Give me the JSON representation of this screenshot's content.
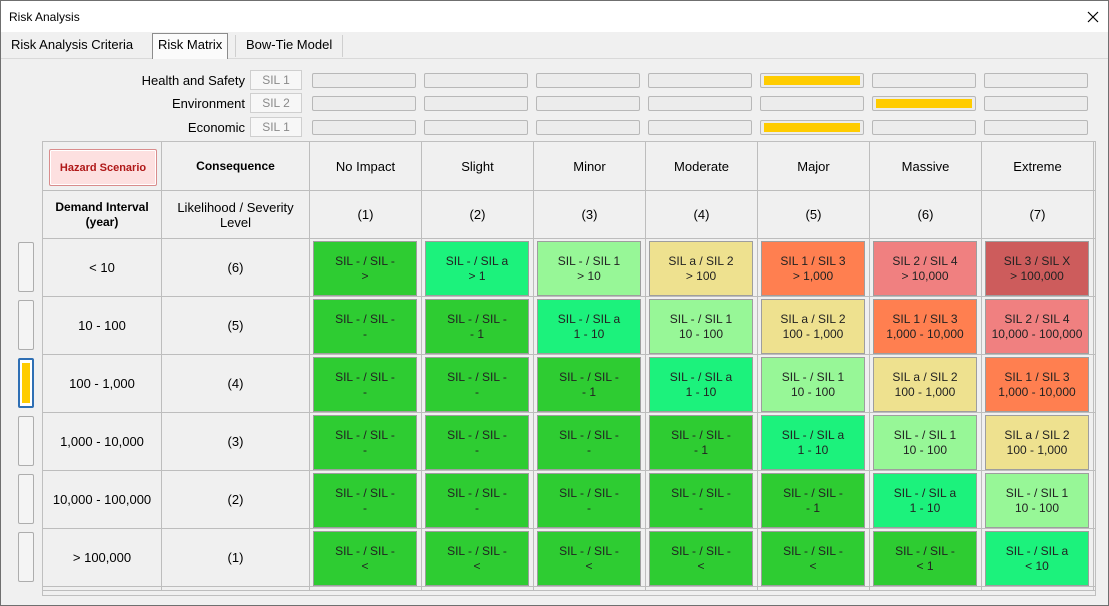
{
  "window": {
    "title": "Risk Analysis"
  },
  "tabs": [
    {
      "label": "Risk Analysis Criteria",
      "active": false
    },
    {
      "label": "Risk Matrix",
      "active": true
    },
    {
      "label": "Bow-Tie Model",
      "active": false
    }
  ],
  "criteria": [
    {
      "label": "Health and Safety",
      "sil": "SIL 1",
      "active_index": 4
    },
    {
      "label": "Environment",
      "sil": "SIL 2",
      "active_index": 5
    },
    {
      "label": "Economic",
      "sil": "SIL 1",
      "active_index": 4
    }
  ],
  "indicator_color": "#ffcc00",
  "matrix": {
    "hazard_button": "Hazard Scenario",
    "consequence_header": "Consequence",
    "demand_header": "Demand Interval (year)",
    "likelihood_header": "Likelihood / Severity Level",
    "columns": [
      {
        "name": "No Impact",
        "level": "(1)"
      },
      {
        "name": "Slight",
        "level": "(2)"
      },
      {
        "name": "Minor",
        "level": "(3)"
      },
      {
        "name": "Moderate",
        "level": "(4)"
      },
      {
        "name": "Major",
        "level": "(5)"
      },
      {
        "name": "Massive",
        "level": "(6)"
      },
      {
        "name": "Extreme",
        "level": "(7)"
      }
    ],
    "selected_row": 2,
    "rows": [
      {
        "interval": "< 10",
        "level": "(6)",
        "cells": [
          {
            "line1": "SIL - / SIL -",
            "line2": ">",
            "color": "#2ecc32"
          },
          {
            "line1": "SIL - / SIL a",
            "line2": "> 1",
            "color": "#1cf27c"
          },
          {
            "line1": "SIL - / SIL 1",
            "line2": "> 10",
            "color": "#97f797"
          },
          {
            "line1": "SIL a / SIL 2",
            "line2": "> 100",
            "color": "#eee18f"
          },
          {
            "line1": "SIL 1 / SIL 3",
            "line2": "> 1,000",
            "color": "#ff7f50"
          },
          {
            "line1": "SIL 2 / SIL 4",
            "line2": "> 10,000",
            "color": "#f08080"
          },
          {
            "line1": "SIL 3 / SIL X",
            "line2": "> 100,000",
            "color": "#cd5c5c"
          }
        ]
      },
      {
        "interval": "10 - 100",
        "level": "(5)",
        "cells": [
          {
            "line1": "SIL - / SIL -",
            "line2": "-",
            "color": "#2ecc32"
          },
          {
            "line1": "SIL - / SIL -",
            "line2": "- 1",
            "color": "#2ecc32"
          },
          {
            "line1": "SIL - / SIL a",
            "line2": "1 - 10",
            "color": "#1cf27c"
          },
          {
            "line1": "SIL - / SIL 1",
            "line2": "10 - 100",
            "color": "#97f797"
          },
          {
            "line1": "SIL a / SIL 2",
            "line2": "100 - 1,000",
            "color": "#eee18f"
          },
          {
            "line1": "SIL 1 / SIL 3",
            "line2": "1,000 - 10,000",
            "color": "#ff7f50"
          },
          {
            "line1": "SIL 2 / SIL 4",
            "line2": "10,000 - 100,000",
            "color": "#f08080"
          }
        ]
      },
      {
        "interval": "100 - 1,000",
        "level": "(4)",
        "cells": [
          {
            "line1": "SIL - / SIL -",
            "line2": "-",
            "color": "#2ecc32"
          },
          {
            "line1": "SIL - / SIL -",
            "line2": "-",
            "color": "#2ecc32"
          },
          {
            "line1": "SIL - / SIL -",
            "line2": "- 1",
            "color": "#2ecc32"
          },
          {
            "line1": "SIL - / SIL a",
            "line2": "1 - 10",
            "color": "#1cf27c"
          },
          {
            "line1": "SIL - / SIL 1",
            "line2": "10 - 100",
            "color": "#97f797"
          },
          {
            "line1": "SIL a / SIL 2",
            "line2": "100 - 1,000",
            "color": "#eee18f"
          },
          {
            "line1": "SIL 1 / SIL 3",
            "line2": "1,000 - 10,000",
            "color": "#ff7f50"
          }
        ]
      },
      {
        "interval": "1,000 - 10,000",
        "level": "(3)",
        "cells": [
          {
            "line1": "SIL - / SIL -",
            "line2": "-",
            "color": "#2ecc32"
          },
          {
            "line1": "SIL - / SIL -",
            "line2": "-",
            "color": "#2ecc32"
          },
          {
            "line1": "SIL - / SIL -",
            "line2": "-",
            "color": "#2ecc32"
          },
          {
            "line1": "SIL - / SIL -",
            "line2": "- 1",
            "color": "#2ecc32"
          },
          {
            "line1": "SIL - / SIL a",
            "line2": "1 - 10",
            "color": "#1cf27c"
          },
          {
            "line1": "SIL - / SIL 1",
            "line2": "10 - 100",
            "color": "#97f797"
          },
          {
            "line1": "SIL a / SIL 2",
            "line2": "100 - 1,000",
            "color": "#eee18f"
          }
        ]
      },
      {
        "interval": "10,000 - 100,000",
        "level": "(2)",
        "cells": [
          {
            "line1": "SIL - / SIL -",
            "line2": "-",
            "color": "#2ecc32"
          },
          {
            "line1": "SIL - / SIL -",
            "line2": "-",
            "color": "#2ecc32"
          },
          {
            "line1": "SIL - / SIL -",
            "line2": "-",
            "color": "#2ecc32"
          },
          {
            "line1": "SIL - / SIL -",
            "line2": "-",
            "color": "#2ecc32"
          },
          {
            "line1": "SIL - / SIL -",
            "line2": "- 1",
            "color": "#2ecc32"
          },
          {
            "line1": "SIL - / SIL a",
            "line2": "1 - 10",
            "color": "#1cf27c"
          },
          {
            "line1": "SIL - / SIL 1",
            "line2": "10 - 100",
            "color": "#97f797"
          }
        ]
      },
      {
        "interval": "> 100,000",
        "level": "(1)",
        "cells": [
          {
            "line1": "SIL - / SIL -",
            "line2": "<",
            "color": "#2ecc32"
          },
          {
            "line1": "SIL - / SIL -",
            "line2": "<",
            "color": "#2ecc32"
          },
          {
            "line1": "SIL - / SIL -",
            "line2": "<",
            "color": "#2ecc32"
          },
          {
            "line1": "SIL - / SIL -",
            "line2": "<",
            "color": "#2ecc32"
          },
          {
            "line1": "SIL - / SIL -",
            "line2": "<",
            "color": "#2ecc32"
          },
          {
            "line1": "SIL - / SIL -",
            "line2": "< 1",
            "color": "#2ecc32"
          },
          {
            "line1": "SIL - / SIL a",
            "line2": "< 10",
            "color": "#1cf27c"
          }
        ]
      }
    ]
  }
}
